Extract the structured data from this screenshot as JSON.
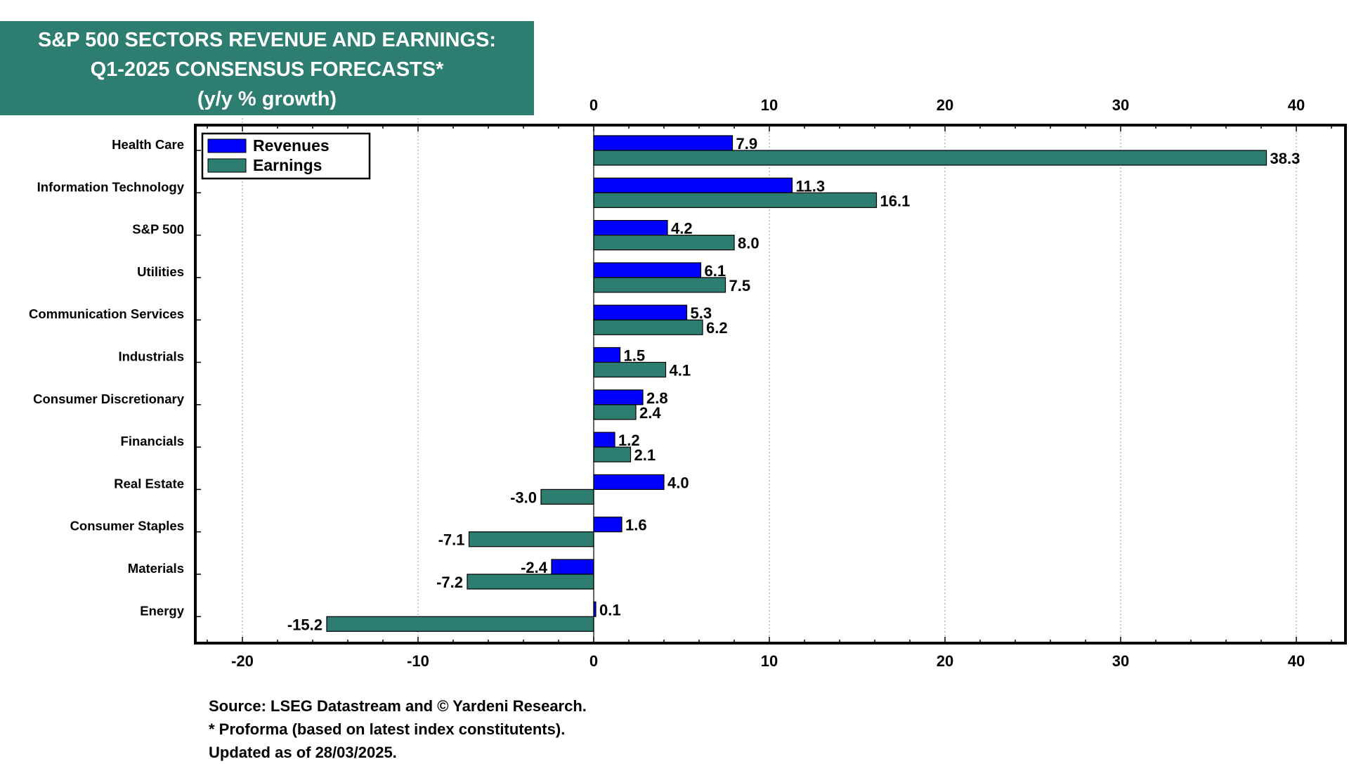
{
  "title": {
    "line1": "S&P 500 SECTORS REVENUE AND EARNINGS:",
    "line2": "Q1-2025 CONSENSUS FORECASTS*",
    "line3": "(y/y % growth)"
  },
  "notes": {
    "source": "Source: LSEG Datastream and © Yardeni Research.",
    "footnote": "* Proforma (based on latest index constitutents).",
    "updated": "Updated as of 28/03/2025."
  },
  "colors": {
    "revenues": "#0000ff",
    "earnings": "#2e7d71",
    "title_bg": "#2e7d71"
  },
  "chart_data": {
    "type": "bar",
    "orientation": "horizontal",
    "categories": [
      "Health Care",
      "Information Technology",
      "S&P 500",
      "Utilities",
      "Communication Services",
      "Industrials",
      "Consumer Discretionary",
      "Financials",
      "Real Estate",
      "Consumer Staples",
      "Materials",
      "Energy"
    ],
    "series": [
      {
        "name": "Revenues",
        "color": "#0000ff",
        "values": [
          7.9,
          11.3,
          4.2,
          6.1,
          5.3,
          1.5,
          2.8,
          1.2,
          4.0,
          1.6,
          -2.4,
          0.1
        ],
        "labels": [
          "7.9",
          "11.3",
          "4.2",
          "6.1",
          "5.3",
          "1.5",
          "2.8",
          "1.2",
          "4.0",
          "1.6",
          "-2.4",
          "0.1"
        ]
      },
      {
        "name": "Earnings",
        "color": "#2e7d71",
        "values": [
          38.3,
          16.1,
          8.0,
          7.5,
          6.2,
          4.1,
          2.4,
          2.1,
          -3.0,
          -7.1,
          -7.2,
          -15.2
        ],
        "labels": [
          "38.3",
          "16.1",
          "8.0",
          "7.5",
          "6.2",
          "4.1",
          "2.4",
          "2.1",
          "-3.0",
          "-7.1",
          "-7.2",
          "-15.2"
        ]
      }
    ],
    "xlim": [
      -22.5,
      43
    ],
    "xticks": [
      -20,
      -10,
      0,
      10,
      20,
      30,
      40
    ],
    "top_ticks": [
      0,
      10,
      20,
      30,
      40
    ],
    "minor_tick_step": 2,
    "grid": "vertical dotted",
    "legend_position": "top-left"
  }
}
